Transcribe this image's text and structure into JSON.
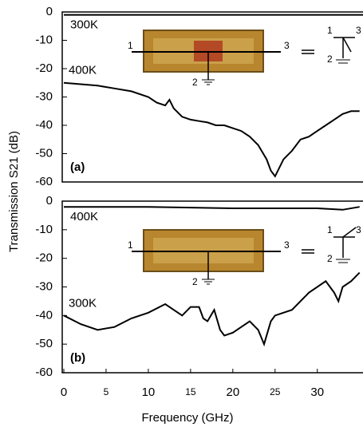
{
  "chart_data": [
    {
      "type": "line",
      "panel_label": "(a)",
      "y_label": "Transmission S21 (dB)",
      "xlim": [
        0,
        35.5
      ],
      "ylim": [
        -60,
        0
      ],
      "yticks": [
        0,
        -10,
        -20,
        -30,
        -40,
        -50,
        -60
      ],
      "inset_labels": [
        "1",
        "3",
        "2"
      ],
      "series": [
        {
          "name": "300K",
          "color": "#000000",
          "x": [
            0,
            35.5
          ],
          "values": [
            -1,
            -1
          ]
        },
        {
          "name": "400K",
          "color": "#000000",
          "x": [
            0,
            2,
            4,
            6,
            8,
            10,
            11,
            12,
            12.5,
            13,
            14,
            15,
            16,
            17,
            18,
            19,
            20,
            21,
            22,
            23,
            24,
            24.5,
            25,
            26,
            27,
            28,
            29,
            30,
            31,
            32,
            33,
            34,
            35
          ],
          "values": [
            -25,
            -25.5,
            -26,
            -27,
            -28,
            -30,
            -32,
            -33,
            -31,
            -34,
            -37,
            -38,
            -38.5,
            -39,
            -40,
            -40,
            -41,
            -42,
            -44,
            -47,
            -52,
            -56,
            -58,
            -52,
            -49,
            -45,
            -44,
            -42,
            -40,
            -38,
            -36,
            -35,
            -35
          ]
        }
      ]
    },
    {
      "type": "line",
      "panel_label": "(b)",
      "x_label": "Frequency (GHz)",
      "xlim": [
        0,
        35.5
      ],
      "xticks": [
        0,
        5,
        10,
        15,
        20,
        25,
        30
      ],
      "ylim": [
        -60,
        0
      ],
      "yticks": [
        0,
        -10,
        -20,
        -30,
        -40,
        -50,
        -60
      ],
      "inset_labels": [
        "1",
        "3",
        "2"
      ],
      "series": [
        {
          "name": "400K",
          "color": "#000000",
          "x": [
            0,
            10,
            20,
            30,
            33,
            35
          ],
          "values": [
            -2,
            -2,
            -2.5,
            -2.5,
            -3,
            -2
          ]
        },
        {
          "name": "300K",
          "color": "#000000",
          "x": [
            0,
            2,
            4,
            6,
            8,
            10,
            12,
            13,
            14,
            15,
            16,
            16.5,
            17,
            17.8,
            18.5,
            19,
            20,
            21,
            22,
            23,
            23.7,
            24.5,
            25,
            27,
            29,
            31,
            32,
            32.5,
            33,
            34,
            35
          ],
          "values": [
            -40,
            -43,
            -45,
            -44,
            -41,
            -39,
            -36,
            -38,
            -40,
            -37,
            -37,
            -41,
            -42,
            -38,
            -45,
            -47,
            -46,
            -44,
            -42,
            -45,
            -50,
            -42,
            -40,
            -38,
            -32,
            -28,
            -32,
            -35,
            -30,
            -28,
            -25
          ]
        }
      ]
    }
  ]
}
